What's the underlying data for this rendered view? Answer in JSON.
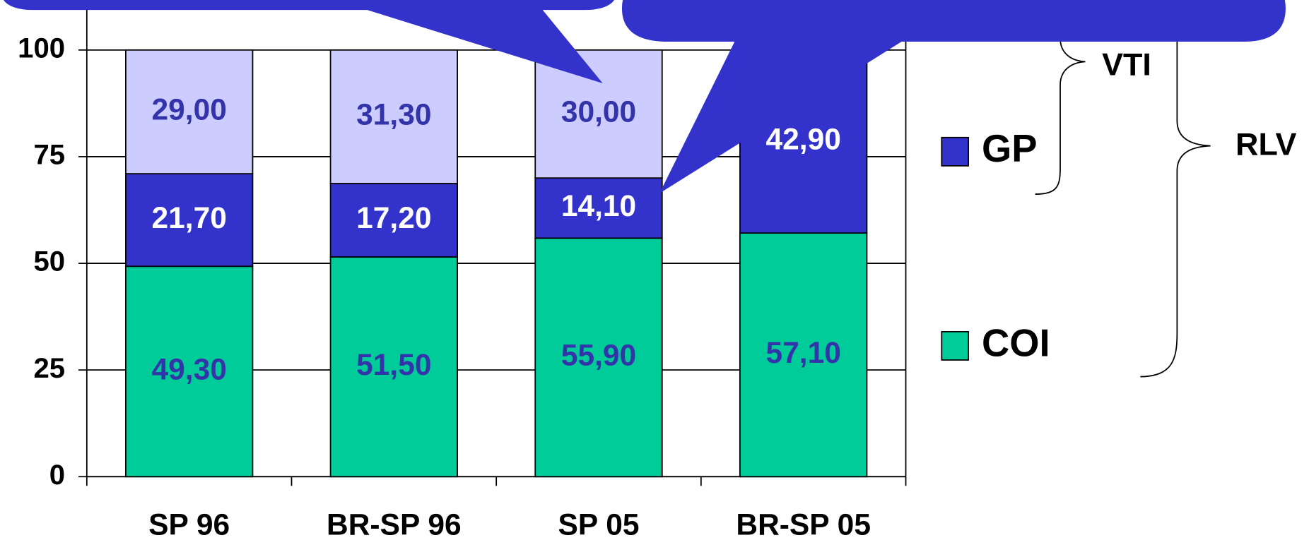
{
  "chart_data": {
    "type": "stacked_bar",
    "categories": [
      "SP 96",
      "BR-SP 96",
      "SP 05",
      "BR-SP 05"
    ],
    "series": [
      {
        "name": "COI",
        "color": "#00cc99",
        "values": [
          49.3,
          51.5,
          55.9,
          57.1
        ],
        "value_labels": [
          "49,30",
          "51,50",
          "55,90",
          "57,10"
        ]
      },
      {
        "name": "GP",
        "color": "#3333cc",
        "values": [
          21.7,
          17.2,
          14.1,
          42.9
        ],
        "value_labels": [
          "21,70",
          "17,20",
          "14,10",
          "42,90"
        ]
      },
      {
        "name": null,
        "color": "#ccccff",
        "values": [
          29.0,
          31.3,
          30.0,
          null
        ],
        "value_labels": [
          "29,00",
          "31,30",
          "30,00",
          null
        ]
      }
    ],
    "ylim": [
      0,
      110
    ],
    "yticks": [
      0,
      25,
      50,
      75,
      100
    ],
    "grid": true,
    "annotations": [
      "VTI",
      "RLV"
    ]
  }
}
